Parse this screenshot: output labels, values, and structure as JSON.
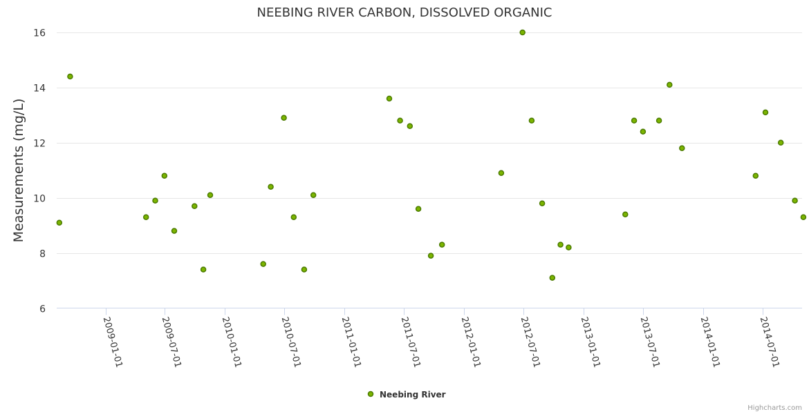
{
  "chart_data": {
    "type": "scatter",
    "title": "NEEBING RIVER CARBON, DISSOLVED ORGANIC",
    "ylabel": "Measurements (mg/L)",
    "xlabel": "",
    "ylim": [
      6,
      16
    ],
    "yticks": [
      "6",
      "8",
      "10",
      "12",
      "14",
      "16"
    ],
    "xlim": [
      "2008-08-05",
      "2014-10-30"
    ],
    "xticks": [
      "2009-01-01",
      "2009-07-01",
      "2010-01-01",
      "2010-07-01",
      "2011-01-01",
      "2011-07-01",
      "2012-01-01",
      "2012-07-01",
      "2013-01-01",
      "2013-07-01",
      "2014-01-01",
      "2014-07-01"
    ],
    "grid": true,
    "legend_position": "bottom-center",
    "series": [
      {
        "name": "Neebing River",
        "color": "#7cb500",
        "marker_stroke": "#4a7a00",
        "points": [
          {
            "x": "2008-08-13",
            "y": 9.1
          },
          {
            "x": "2008-09-15",
            "y": 14.4
          },
          {
            "x": "2009-05-05",
            "y": 9.3
          },
          {
            "x": "2009-06-02",
            "y": 9.9
          },
          {
            "x": "2009-06-30",
            "y": 10.8
          },
          {
            "x": "2009-07-30",
            "y": 8.8
          },
          {
            "x": "2009-09-30",
            "y": 9.7
          },
          {
            "x": "2009-10-27",
            "y": 7.4
          },
          {
            "x": "2009-11-17",
            "y": 10.1
          },
          {
            "x": "2010-04-28",
            "y": 7.6
          },
          {
            "x": "2010-05-21",
            "y": 10.4
          },
          {
            "x": "2010-06-30",
            "y": 12.9
          },
          {
            "x": "2010-07-30",
            "y": 9.3
          },
          {
            "x": "2010-08-31",
            "y": 7.4
          },
          {
            "x": "2010-09-28",
            "y": 10.1
          },
          {
            "x": "2011-05-18",
            "y": 13.6
          },
          {
            "x": "2011-06-20",
            "y": 12.8
          },
          {
            "x": "2011-07-20",
            "y": 12.6
          },
          {
            "x": "2011-08-15",
            "y": 9.6
          },
          {
            "x": "2011-09-22",
            "y": 7.9
          },
          {
            "x": "2011-10-26",
            "y": 8.3
          },
          {
            "x": "2012-04-24",
            "y": 10.9
          },
          {
            "x": "2012-06-28",
            "y": 16.0
          },
          {
            "x": "2012-07-26",
            "y": 12.8
          },
          {
            "x": "2012-08-27",
            "y": 9.8
          },
          {
            "x": "2012-09-27",
            "y": 7.1
          },
          {
            "x": "2012-10-22",
            "y": 8.3
          },
          {
            "x": "2012-11-16",
            "y": 8.2
          },
          {
            "x": "2013-05-08",
            "y": 9.4
          },
          {
            "x": "2013-06-04",
            "y": 12.8
          },
          {
            "x": "2013-07-01",
            "y": 12.4
          },
          {
            "x": "2013-08-19",
            "y": 12.8
          },
          {
            "x": "2013-09-20",
            "y": 14.1
          },
          {
            "x": "2013-10-28",
            "y": 11.8
          },
          {
            "x": "2014-06-10",
            "y": 10.8
          },
          {
            "x": "2014-07-10",
            "y": 13.1
          },
          {
            "x": "2014-08-26",
            "y": 12.0
          },
          {
            "x": "2014-10-08",
            "y": 9.9
          },
          {
            "x": "2014-11-03",
            "y": 9.3
          }
        ]
      }
    ]
  },
  "credits": "Highcharts.com"
}
